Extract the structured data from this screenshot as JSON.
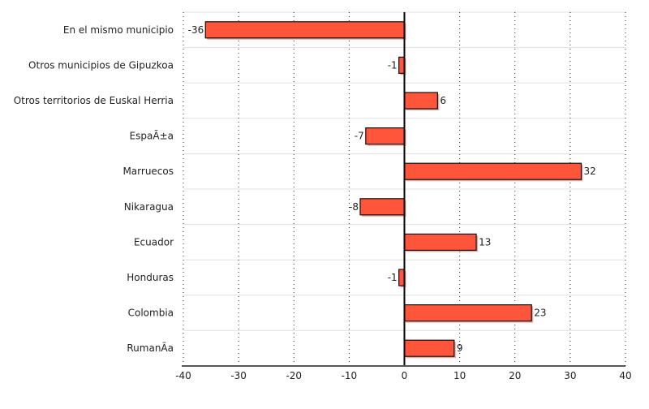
{
  "chart_data": {
    "type": "bar",
    "orientation": "horizontal",
    "title": "",
    "xlabel": "",
    "ylabel": "",
    "xlim": [
      -40,
      40
    ],
    "xticks": [
      -40,
      -30,
      -20,
      -10,
      0,
      10,
      20,
      30,
      40
    ],
    "grid": true,
    "categories": [
      "En el mismo municipio",
      "Otros municipios de Gipuzkoa",
      "Otros territorios de Euskal Herria",
      "EspaÃ±a",
      "Marruecos",
      "Nikaragua",
      "Ecuador",
      "Honduras",
      "Colombia",
      "RumanÃ­a"
    ],
    "values": [
      -36,
      -1,
      6,
      -7,
      32,
      -8,
      13,
      -1,
      23,
      9
    ],
    "colors": {
      "bar": "#fe553b",
      "shadow": "#e8a8a0",
      "grid": "#e0e0e0"
    }
  }
}
